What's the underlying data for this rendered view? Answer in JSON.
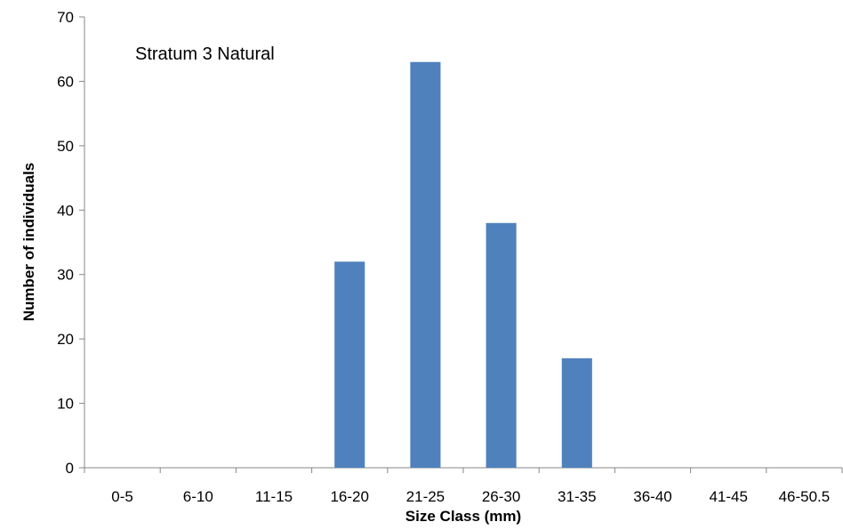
{
  "chart_data": {
    "type": "bar",
    "title": "",
    "annotation": "Stratum 3 Natural",
    "xlabel": "Size Class (mm)",
    "ylabel": "Number of individuals",
    "categories": [
      "0-5",
      "6-10",
      "11-15",
      "16-20",
      "21-25",
      "26-30",
      "31-35",
      "36-40",
      "41-45",
      "46-50.5"
    ],
    "values": [
      0,
      0,
      0,
      32,
      63,
      38,
      17,
      0,
      0,
      0
    ],
    "ylim": [
      0,
      70
    ],
    "yticks": [
      0,
      10,
      20,
      30,
      40,
      50,
      60,
      70
    ],
    "grid": false,
    "legend": "none",
    "bar_color": "#4f81bd"
  }
}
